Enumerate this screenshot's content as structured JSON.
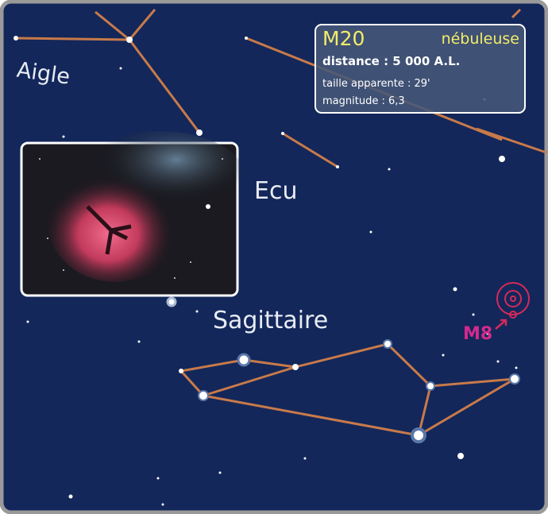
{
  "labels": {
    "aigle": "Aigle",
    "ecu": "Ecu",
    "sagittaire": "Sagittaire",
    "m8": "M8"
  },
  "info": {
    "name": "M20",
    "type": "nébuleuse",
    "distance": "distance : 5 000 A.L.",
    "size": "taille apparente : 29'",
    "magnitude": "magnitude : 6,3"
  }
}
